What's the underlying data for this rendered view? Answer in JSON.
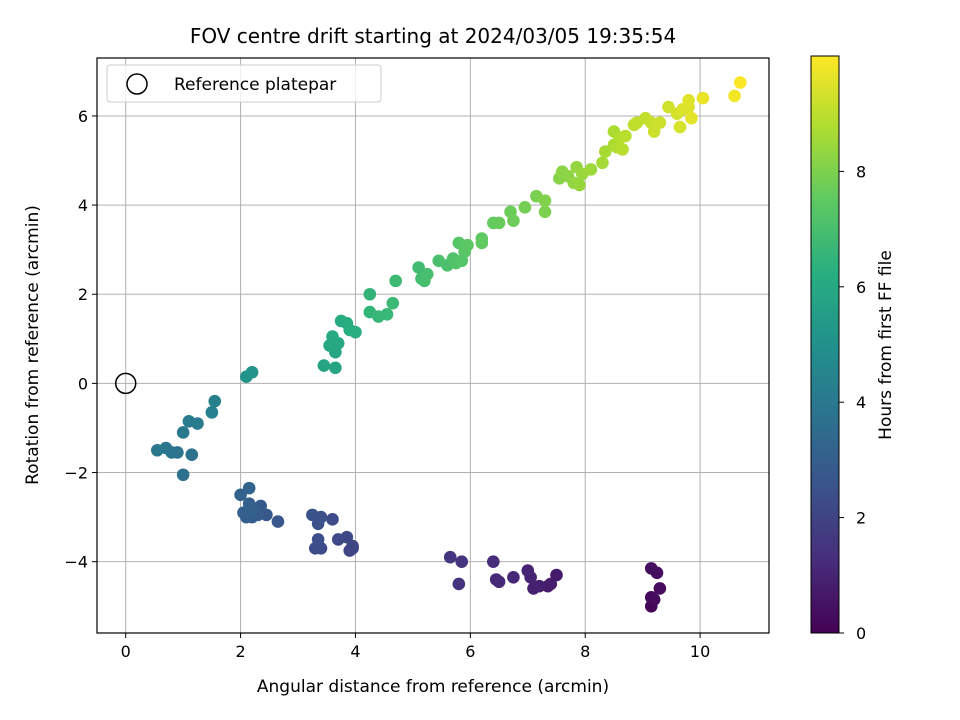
{
  "chart_data": {
    "type": "scatter",
    "title": "FOV centre drift starting at 2024/03/05 19:35:54",
    "xlabel": "Angular distance from reference (arcmin)",
    "ylabel": "Rotation from reference (arcmin)",
    "xlim": [
      -0.5,
      11.2
    ],
    "ylim": [
      -5.6,
      7.3
    ],
    "x_ticks": [
      0,
      2,
      4,
      6,
      8,
      10
    ],
    "y_ticks": [
      -4,
      -2,
      0,
      2,
      4,
      6
    ],
    "x_tick_labels": [
      "0",
      "2",
      "4",
      "6",
      "8",
      "10"
    ],
    "y_tick_labels": [
      "−4",
      "−2",
      "0",
      "2",
      "4",
      "6"
    ],
    "grid": true,
    "legend": {
      "placement": "top-left",
      "entries": [
        "Reference platepar"
      ]
    },
    "reference_point": {
      "x": 0,
      "y": 0
    },
    "colorbar": {
      "label": "Hours from first FF file",
      "colormap": "viridis",
      "range": [
        0,
        10
      ],
      "ticks": [
        0,
        2,
        4,
        6,
        8
      ],
      "tick_labels": [
        "0",
        "2",
        "4",
        "6",
        "8"
      ]
    },
    "series": [
      {
        "points": [
          [
            9.15,
            -5.0,
            0.1
          ],
          [
            9.15,
            -4.8,
            0.2
          ],
          [
            9.2,
            -4.85,
            0.25
          ],
          [
            9.3,
            -4.6,
            0.3
          ],
          [
            9.25,
            -4.25,
            0.35
          ],
          [
            9.15,
            -4.15,
            0.4
          ],
          [
            7.5,
            -4.3,
            0.7
          ],
          [
            7.4,
            -4.5,
            0.75
          ],
          [
            7.35,
            -4.55,
            0.8
          ],
          [
            7.2,
            -4.55,
            0.85
          ],
          [
            7.1,
            -4.6,
            0.9
          ],
          [
            7.05,
            -4.35,
            0.95
          ],
          [
            7.0,
            -4.2,
            1.0
          ],
          [
            6.75,
            -4.35,
            1.1
          ],
          [
            6.5,
            -4.45,
            1.15
          ],
          [
            6.45,
            -4.4,
            1.2
          ],
          [
            6.4,
            -4.0,
            1.25
          ],
          [
            5.8,
            -4.5,
            1.45
          ],
          [
            5.85,
            -4.0,
            1.5
          ],
          [
            5.65,
            -3.9,
            1.55
          ],
          [
            3.95,
            -3.7,
            2.0
          ],
          [
            3.9,
            -3.75,
            2.05
          ],
          [
            3.95,
            -3.65,
            2.1
          ],
          [
            3.85,
            -3.45,
            2.15
          ],
          [
            3.7,
            -3.5,
            2.2
          ],
          [
            3.6,
            -3.05,
            2.25
          ],
          [
            3.4,
            -3.7,
            2.3
          ],
          [
            3.3,
            -3.7,
            2.35
          ],
          [
            3.35,
            -3.5,
            2.4
          ],
          [
            3.35,
            -3.15,
            2.45
          ],
          [
            3.4,
            -3.0,
            2.5
          ],
          [
            3.25,
            -2.95,
            2.55
          ],
          [
            2.65,
            -3.1,
            2.7
          ],
          [
            2.45,
            -2.95,
            2.75
          ],
          [
            2.35,
            -2.75,
            2.8
          ],
          [
            2.3,
            -2.95,
            2.85
          ],
          [
            2.2,
            -3.0,
            2.9
          ],
          [
            2.1,
            -3.0,
            2.95
          ],
          [
            2.05,
            -2.9,
            3.0
          ],
          [
            2.2,
            -2.85,
            3.05
          ],
          [
            2.15,
            -2.7,
            3.1
          ],
          [
            2.0,
            -2.5,
            3.15
          ],
          [
            2.15,
            -2.35,
            3.2
          ],
          [
            1.0,
            -2.05,
            3.7
          ],
          [
            1.15,
            -1.6,
            3.75
          ],
          [
            0.9,
            -1.55,
            3.8
          ],
          [
            0.8,
            -1.55,
            3.85
          ],
          [
            0.7,
            -1.45,
            3.9
          ],
          [
            0.55,
            -1.5,
            3.95
          ],
          [
            1.0,
            -1.1,
            4.0
          ],
          [
            1.1,
            -0.85,
            4.1
          ],
          [
            1.25,
            -0.9,
            4.15
          ],
          [
            1.5,
            -0.65,
            4.3
          ],
          [
            1.55,
            -0.4,
            4.35
          ],
          [
            2.1,
            0.15,
            5.1
          ],
          [
            2.2,
            0.25,
            5.15
          ],
          [
            3.45,
            0.4,
            5.8
          ],
          [
            3.65,
            0.35,
            5.85
          ],
          [
            3.65,
            0.7,
            5.9
          ],
          [
            3.55,
            0.85,
            5.95
          ],
          [
            3.7,
            0.9,
            6.0
          ],
          [
            3.6,
            1.05,
            6.05
          ],
          [
            3.75,
            1.4,
            6.1
          ],
          [
            3.85,
            1.35,
            6.15
          ],
          [
            3.9,
            1.2,
            6.2
          ],
          [
            4.0,
            1.15,
            6.25
          ],
          [
            4.25,
            2.0,
            6.5
          ],
          [
            4.25,
            1.6,
            6.55
          ],
          [
            4.4,
            1.5,
            6.6
          ],
          [
            4.55,
            1.55,
            6.65
          ],
          [
            4.65,
            1.8,
            6.7
          ],
          [
            4.7,
            2.3,
            6.75
          ],
          [
            5.1,
            2.6,
            6.85
          ],
          [
            5.15,
            2.35,
            6.9
          ],
          [
            5.2,
            2.3,
            6.95
          ],
          [
            5.25,
            2.45,
            7.0
          ],
          [
            5.45,
            2.75,
            7.05
          ],
          [
            5.6,
            2.65,
            7.1
          ],
          [
            5.7,
            2.8,
            7.15
          ],
          [
            5.75,
            2.7,
            7.2
          ],
          [
            5.85,
            2.75,
            7.25
          ],
          [
            5.8,
            3.15,
            7.3
          ],
          [
            5.9,
            2.95,
            7.35
          ],
          [
            5.95,
            3.1,
            7.4
          ],
          [
            6.2,
            3.25,
            7.5
          ],
          [
            6.2,
            3.15,
            7.55
          ],
          [
            6.4,
            3.6,
            7.6
          ],
          [
            6.5,
            3.6,
            7.65
          ],
          [
            6.7,
            3.85,
            7.7
          ],
          [
            6.75,
            3.65,
            7.75
          ],
          [
            6.95,
            3.95,
            7.85
          ],
          [
            7.15,
            4.2,
            7.95
          ],
          [
            7.3,
            3.85,
            8.0
          ],
          [
            7.3,
            4.1,
            8.05
          ],
          [
            7.55,
            4.6,
            8.15
          ],
          [
            7.6,
            4.75,
            8.2
          ],
          [
            7.7,
            4.65,
            8.25
          ],
          [
            7.8,
            4.5,
            8.3
          ],
          [
            7.85,
            4.85,
            8.35
          ],
          [
            7.9,
            4.45,
            8.4
          ],
          [
            7.95,
            4.7,
            8.45
          ],
          [
            8.1,
            4.8,
            8.5
          ],
          [
            8.3,
            4.95,
            8.6
          ],
          [
            8.35,
            5.2,
            8.65
          ],
          [
            8.5,
            5.35,
            8.7
          ],
          [
            8.5,
            5.65,
            8.75
          ],
          [
            8.55,
            5.3,
            8.8
          ],
          [
            8.6,
            5.5,
            8.85
          ],
          [
            8.65,
            5.25,
            8.9
          ],
          [
            8.7,
            5.55,
            8.95
          ],
          [
            8.85,
            5.8,
            9.0
          ],
          [
            8.9,
            5.85,
            9.05
          ],
          [
            9.05,
            5.95,
            9.1
          ],
          [
            9.15,
            5.85,
            9.15
          ],
          [
            9.2,
            5.65,
            9.2
          ],
          [
            9.3,
            5.85,
            9.25
          ],
          [
            9.45,
            6.2,
            9.3
          ],
          [
            9.6,
            6.05,
            9.35
          ],
          [
            9.65,
            5.75,
            9.4
          ],
          [
            9.7,
            6.15,
            9.45
          ],
          [
            9.8,
            6.2,
            9.5
          ],
          [
            9.8,
            6.35,
            9.55
          ],
          [
            9.85,
            5.95,
            9.6
          ],
          [
            10.05,
            6.4,
            9.7
          ],
          [
            10.6,
            6.45,
            9.85
          ],
          [
            10.7,
            6.75,
            9.95
          ]
        ]
      }
    ]
  }
}
